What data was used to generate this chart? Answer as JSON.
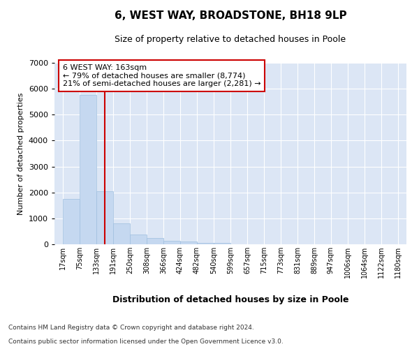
{
  "title1": "6, WEST WAY, BROADSTONE, BH18 9LP",
  "title2": "Size of property relative to detached houses in Poole",
  "xlabel": "Distribution of detached houses by size in Poole",
  "ylabel": "Number of detached properties",
  "bin_labels": [
    "17sqm",
    "75sqm",
    "133sqm",
    "191sqm",
    "250sqm",
    "308sqm",
    "366sqm",
    "424sqm",
    "482sqm",
    "540sqm",
    "599sqm",
    "657sqm",
    "715sqm",
    "773sqm",
    "831sqm",
    "889sqm",
    "947sqm",
    "1006sqm",
    "1064sqm",
    "1122sqm",
    "1180sqm"
  ],
  "bin_edges": [
    17,
    75,
    133,
    191,
    250,
    308,
    366,
    424,
    482,
    540,
    599,
    657,
    715,
    773,
    831,
    889,
    947,
    1006,
    1064,
    1122,
    1180
  ],
  "bar_heights": [
    1750,
    5750,
    2050,
    800,
    370,
    230,
    130,
    100,
    65,
    45,
    0,
    0,
    0,
    0,
    0,
    0,
    0,
    0,
    0,
    0
  ],
  "bar_color": "#c5d8f0",
  "bar_edge_color": "#9fbfdf",
  "property_sqm": 163,
  "vline_color": "#cc0000",
  "annotation_text": "6 WEST WAY: 163sqm\n← 79% of detached houses are smaller (8,774)\n21% of semi-detached houses are larger (2,281) →",
  "annotation_box_color": "#cc0000",
  "ylim": [
    0,
    7000
  ],
  "yticks": [
    0,
    1000,
    2000,
    3000,
    4000,
    5000,
    6000,
    7000
  ],
  "background_color": "#dce6f5",
  "grid_color": "#ffffff",
  "footer1": "Contains HM Land Registry data © Crown copyright and database right 2024.",
  "footer2": "Contains public sector information licensed under the Open Government Licence v3.0."
}
